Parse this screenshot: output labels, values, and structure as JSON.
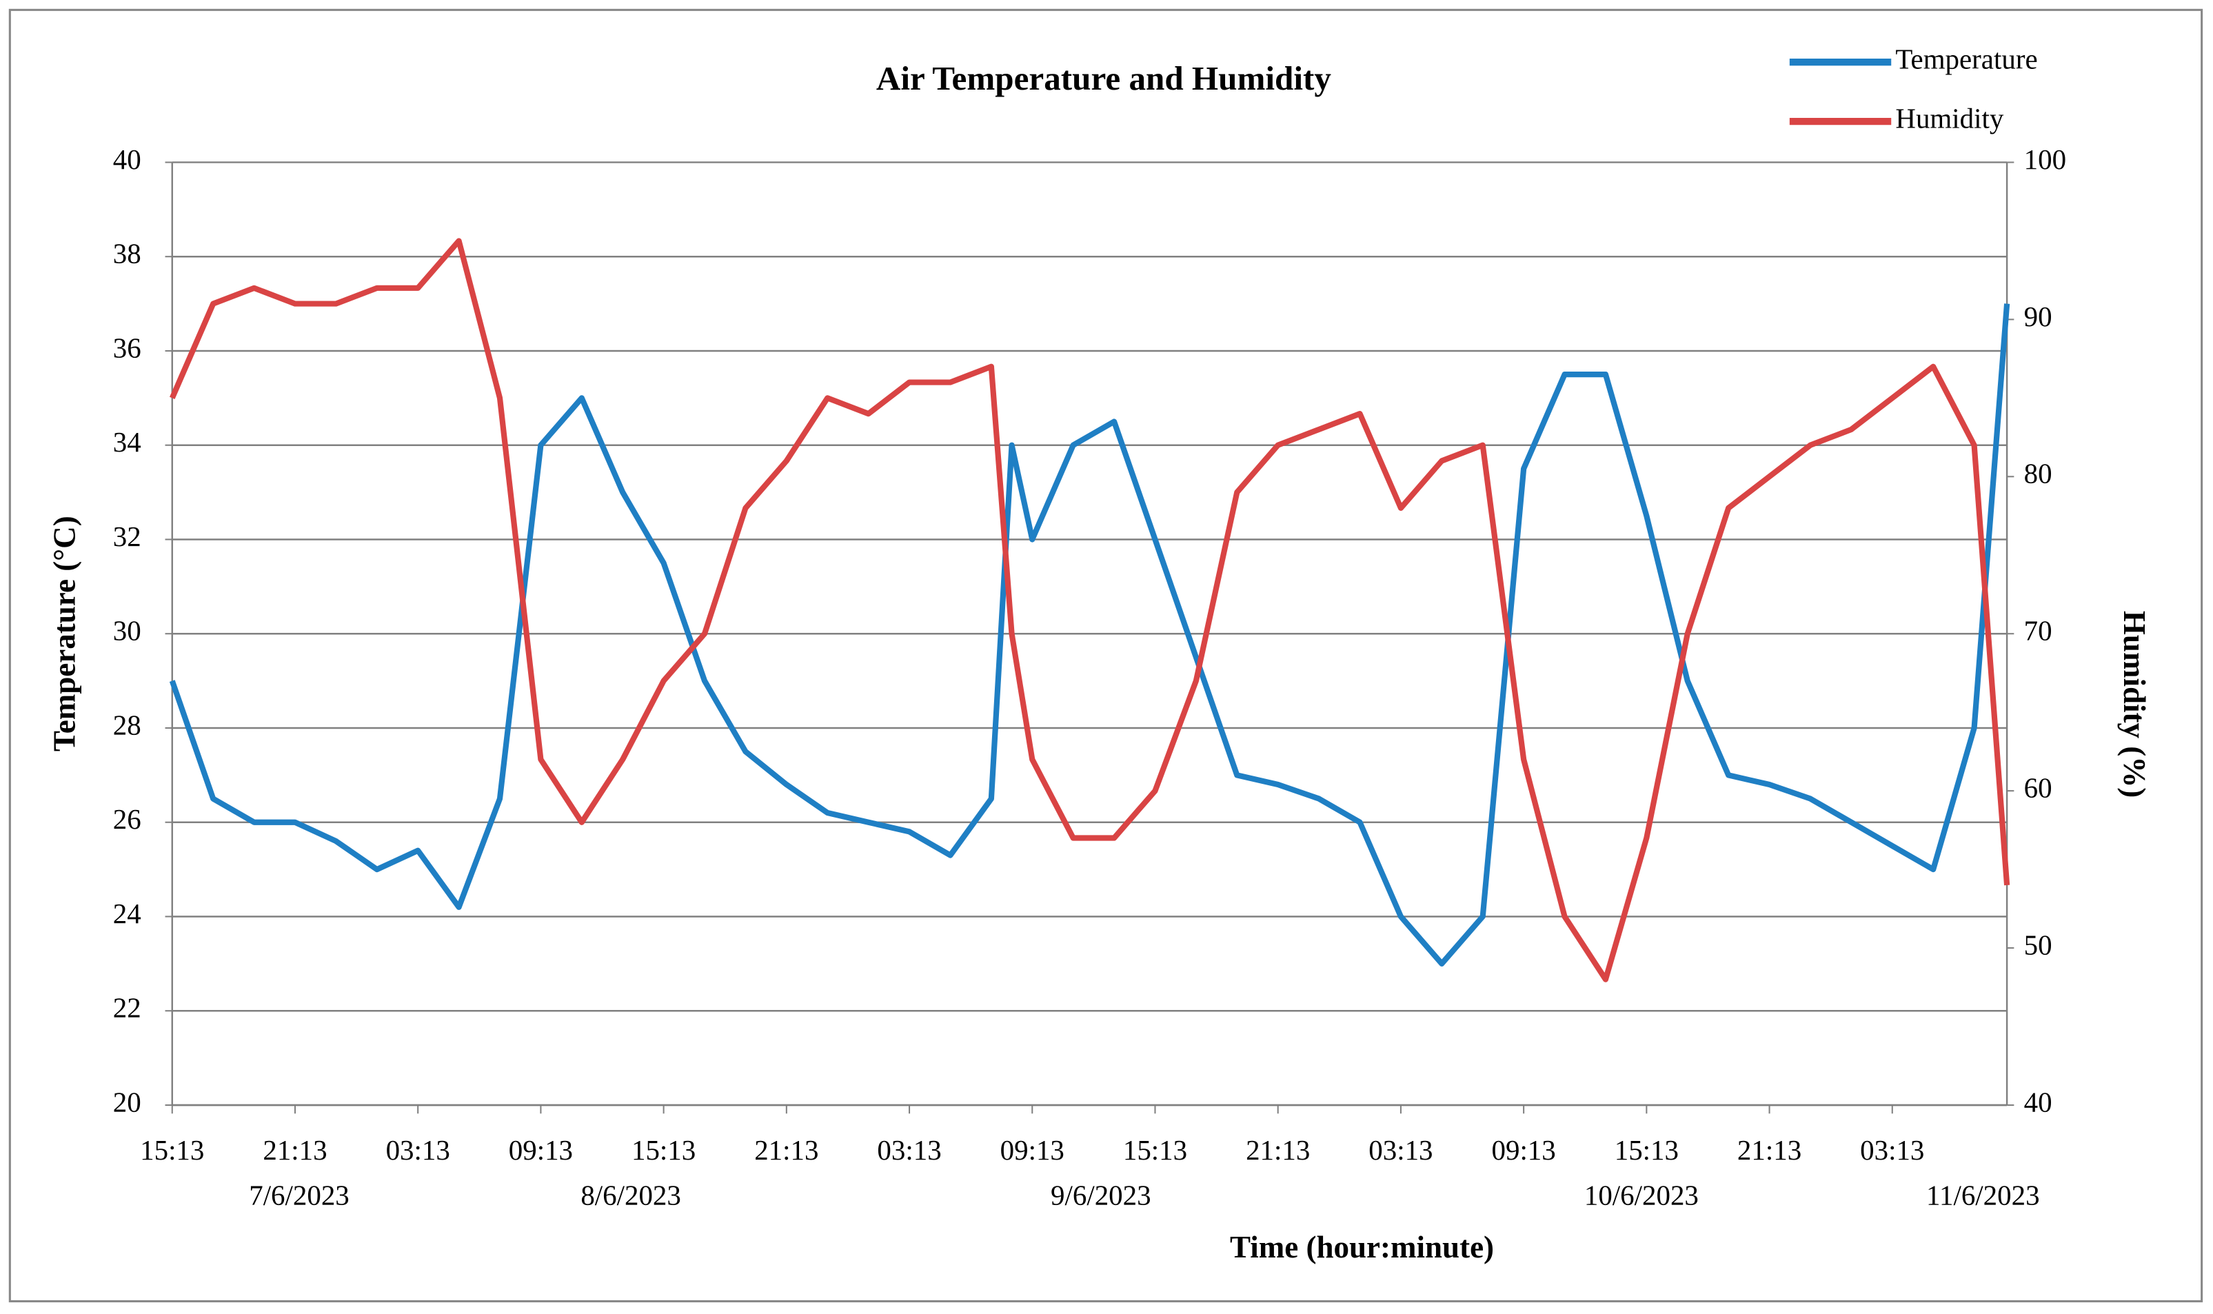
{
  "chart_data": {
    "type": "line",
    "title": "Air Temperature and Humidity",
    "x_label": "Time (hour:minute)",
    "y_label": "Temperature (°C)",
    "y2_label": "Humidity (%)",
    "x": [
      "2023-06-07T15:13",
      "2023-06-07T17:13",
      "2023-06-07T19:13",
      "2023-06-07T21:13",
      "2023-06-07T23:13",
      "2023-06-08T01:13",
      "2023-06-08T03:13",
      "2023-06-08T05:13",
      "2023-06-08T07:13",
      "2023-06-08T09:13",
      "2023-06-08T11:13",
      "2023-06-08T13:13",
      "2023-06-08T15:13",
      "2023-06-08T17:13",
      "2023-06-08T19:13",
      "2023-06-08T21:13",
      "2023-06-08T23:13",
      "2023-06-09T01:13",
      "2023-06-09T03:13",
      "2023-06-09T05:13",
      "2023-06-09T07:13",
      "2023-06-09T08:13",
      "2023-06-09T09:13",
      "2023-06-09T11:13",
      "2023-06-09T13:13",
      "2023-06-09T15:13",
      "2023-06-09T17:13",
      "2023-06-09T19:13",
      "2023-06-09T21:13",
      "2023-06-09T23:13",
      "2023-06-10T01:13",
      "2023-06-10T03:13",
      "2023-06-10T05:13",
      "2023-06-10T07:13",
      "2023-06-10T09:13",
      "2023-06-10T11:13",
      "2023-06-10T13:13",
      "2023-06-10T15:13",
      "2023-06-10T17:13",
      "2023-06-10T19:13",
      "2023-06-10T21:13",
      "2023-06-10T23:13",
      "2023-06-11T01:13",
      "2023-06-11T03:13",
      "2023-06-11T05:13",
      "2023-06-11T07:13",
      "2023-06-11T08:49"
    ],
    "series": [
      {
        "name": "Temperature",
        "color": "#1f7fc4",
        "axis": "y",
        "values": [
          29,
          26.5,
          26,
          26,
          25.6,
          25,
          25.4,
          24.2,
          26.5,
          34,
          35,
          33,
          31.5,
          29,
          27.5,
          26.8,
          26.2,
          26,
          25.8,
          25.3,
          26.5,
          34,
          32,
          34,
          34.5,
          32,
          29.5,
          27,
          26.8,
          26.5,
          26,
          24,
          23,
          24,
          33.5,
          35.5,
          35.5,
          32.5,
          29,
          27,
          26.8,
          26.5,
          26,
          25.5,
          25,
          28,
          37
        ]
      },
      {
        "name": "Humidity",
        "color": "#d94444",
        "axis": "y2",
        "values": [
          85,
          91,
          92,
          91,
          91,
          92,
          92,
          95,
          85,
          62,
          58,
          62,
          67,
          70,
          78,
          81,
          85,
          84,
          86,
          86,
          87,
          70,
          62,
          57,
          57,
          60,
          67,
          79,
          82,
          83,
          84,
          78,
          81,
          82,
          62,
          52,
          48,
          57,
          70,
          78,
          80,
          82,
          83,
          85,
          87,
          82,
          54
        ]
      }
    ],
    "xlim": [
      "2023-06-07T15:13",
      "2023-06-11T08:49"
    ],
    "xticks": [
      {
        "value": "2023-06-07T15:13",
        "label": "15:13"
      },
      {
        "value": "2023-06-07T21:13",
        "label": "21:13"
      },
      {
        "value": "2023-06-08T03:13",
        "label": "03:13"
      },
      {
        "value": "2023-06-08T09:13",
        "label": "09:13"
      },
      {
        "value": "2023-06-08T15:13",
        "label": "15:13"
      },
      {
        "value": "2023-06-08T21:13",
        "label": "21:13"
      },
      {
        "value": "2023-06-09T03:13",
        "label": "03:13"
      },
      {
        "value": "2023-06-09T09:13",
        "label": "09:13"
      },
      {
        "value": "2023-06-09T15:13",
        "label": "15:13"
      },
      {
        "value": "2023-06-09T21:13",
        "label": "21:13"
      },
      {
        "value": "2023-06-10T03:13",
        "label": "03:13"
      },
      {
        "value": "2023-06-10T09:13",
        "label": "09:13"
      },
      {
        "value": "2023-06-10T15:13",
        "label": "15:13"
      },
      {
        "value": "2023-06-10T21:13",
        "label": "21:13"
      },
      {
        "value": "2023-06-11T03:13",
        "label": "03:13"
      }
    ],
    "date_labels": [
      "7/6/2023",
      "8/6/2023",
      "9/6/2023",
      "10/6/2023",
      "11/6/2023"
    ],
    "ylim": [
      20,
      40
    ],
    "yticks": [
      20,
      22,
      24,
      26,
      28,
      30,
      32,
      34,
      36,
      38,
      40
    ],
    "y2lim": [
      40,
      100
    ],
    "y2ticks": [
      40,
      50,
      60,
      70,
      80,
      90,
      100
    ],
    "grid": true,
    "legend": "top-right"
  }
}
